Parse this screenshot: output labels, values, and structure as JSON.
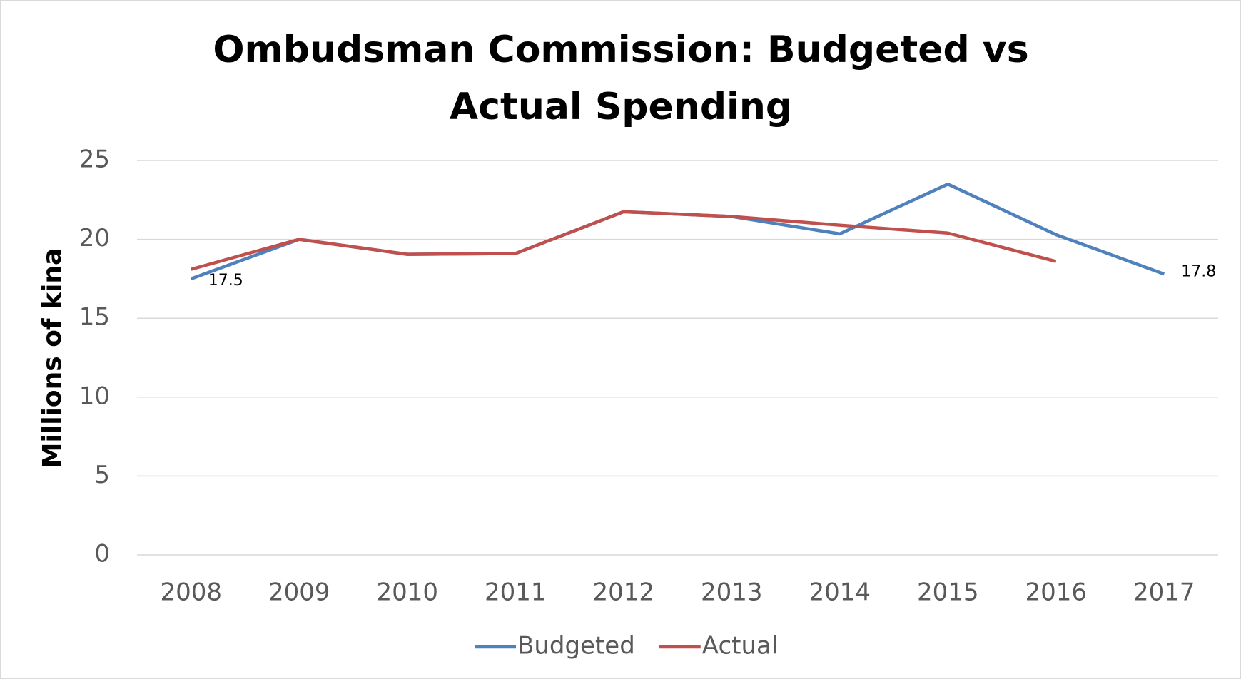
{
  "chart_data": {
    "type": "line",
    "title": "Ombudsman Commission: Budgeted vs Actual Spending",
    "y_label": "Millions of kina",
    "categories": [
      "2008",
      "2009",
      "2010",
      "2011",
      "2012",
      "2013",
      "2014",
      "2015",
      "2016",
      "2017"
    ],
    "series": [
      {
        "name": "Budgeted",
        "color": "#4f81bd",
        "values": [
          17.5,
          20.0,
          19.05,
          19.1,
          21.75,
          21.45,
          20.35,
          23.5,
          20.3,
          17.8
        ]
      },
      {
        "name": "Actual",
        "color": "#c0504d",
        "values": [
          18.1,
          20.0,
          19.05,
          19.1,
          21.75,
          21.45,
          20.9,
          20.4,
          18.6,
          null
        ]
      }
    ],
    "data_labels": [
      {
        "series": 0,
        "index": 0
      },
      {
        "series": 0,
        "index": 9
      }
    ],
    "ylim": [
      0,
      25
    ],
    "yticks": [
      0,
      5,
      10,
      15,
      20,
      25
    ],
    "grid": true,
    "legend": "bottom"
  }
}
